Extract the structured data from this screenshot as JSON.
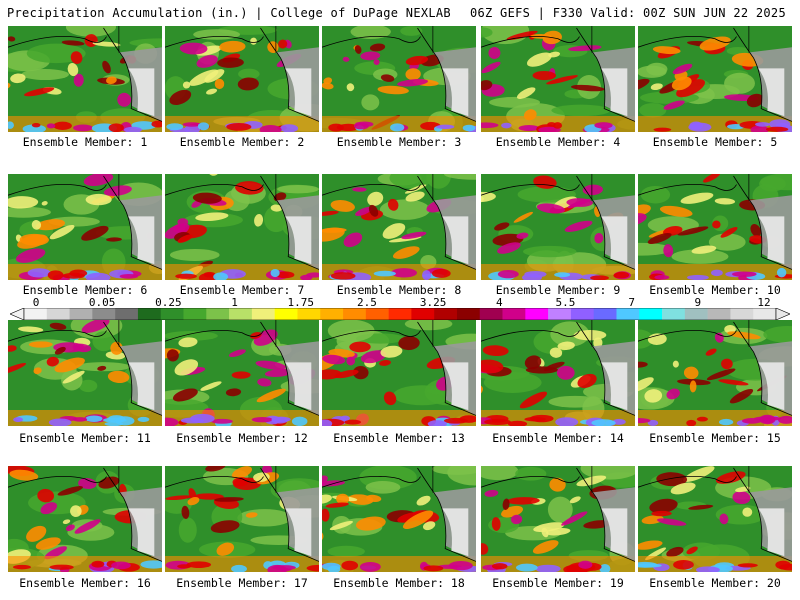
{
  "header": {
    "left": "Precipitation Accumulation (in.) | College of DuPage NEXLAB",
    "right": "06Z GEFS | F330 Valid: 00Z SUN JUN 22 2025"
  },
  "members": [
    "Ensemble Member: 1",
    "Ensemble Member: 2",
    "Ensemble Member: 3",
    "Ensemble Member: 4",
    "Ensemble Member: 5",
    "Ensemble Member: 6",
    "Ensemble Member: 7",
    "Ensemble Member: 8",
    "Ensemble Member: 9",
    "Ensemble Member: 10",
    "Ensemble Member: 11",
    "Ensemble Member: 12",
    "Ensemble Member: 13",
    "Ensemble Member: 14",
    "Ensemble Member: 15",
    "Ensemble Member: 16",
    "Ensemble Member: 17",
    "Ensemble Member: 18",
    "Ensemble Member: 19",
    "Ensemble Member: 20"
  ],
  "colorbar": {
    "tick_labels": [
      "0",
      "0.05",
      "0.25",
      "1",
      "1.75",
      "2.5",
      "3.25",
      "4",
      "5.5",
      "7",
      "9",
      "12"
    ],
    "colors": [
      "#f2f2f2",
      "#d6d6d6",
      "#b0b0b0",
      "#8c8c8c",
      "#6e6e6e",
      "#1e6b1e",
      "#2f8f2a",
      "#46a82e",
      "#7cc24a",
      "#b8e068",
      "#f0f07a",
      "#ffff00",
      "#ffd700",
      "#ffb000",
      "#ff8c00",
      "#ff6000",
      "#ff2a00",
      "#e00000",
      "#b00000",
      "#8b0000",
      "#a00050",
      "#d0008a",
      "#ff00ff",
      "#c080ff",
      "#9060ff",
      "#6a6aff",
      "#4fc8ff",
      "#00ffff",
      "#7fe0e0",
      "#a0c0c0",
      "#b8b8b8",
      "#d8d8d8",
      "#e8e8e8"
    ]
  },
  "map_colors": {
    "ocean": "#2f8f2a",
    "light_green": "#46a82e",
    "pale_green": "#7cc24a",
    "yellow": "#f0f07a",
    "orange": "#ff8c00",
    "red": "#e00000",
    "dark_red": "#8b0000",
    "magenta": "#d0008a",
    "purple": "#9060ff",
    "cyan": "#4fc8ff",
    "land_gray": "#9a9a9a",
    "land_light": "#e6e6e6",
    "coast": "#000000"
  }
}
